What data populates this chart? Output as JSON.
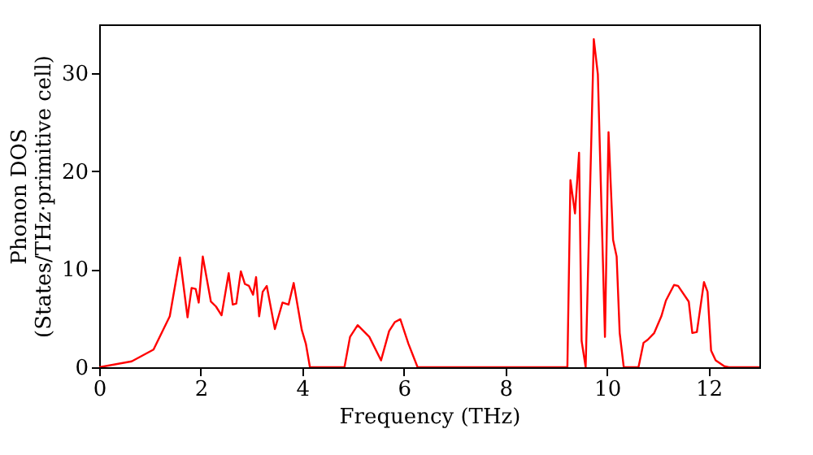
{
  "chart_data": {
    "type": "line",
    "xlabel": "Frequency (THz)",
    "ylabel": "Phonon DOS\n(States/THz·primitive cell)",
    "series": [
      {
        "color": "#ff0000",
        "x": [
          0,
          0.64,
          1.07,
          1.39,
          1.59,
          1.74,
          1.82,
          1.9,
          1.96,
          2.04,
          2.2,
          2.3,
          2.41,
          2.55,
          2.63,
          2.7,
          2.79,
          2.87,
          2.95,
          3.03,
          3.09,
          3.15,
          3.22,
          3.3,
          3.46,
          3.61,
          3.73,
          3.83,
          3.99,
          4.07,
          4.15,
          4.83,
          4.94,
          5.09,
          5.32,
          5.55,
          5.71,
          5.82,
          5.93,
          6.09,
          6.27,
          9.22,
          9.28,
          9.37,
          9.45,
          9.5,
          9.58,
          9.74,
          9.82,
          9.96,
          10.03,
          10.12,
          10.19,
          10.25,
          10.33,
          10.62,
          10.72,
          10.8,
          10.93,
          11.07,
          11.16,
          11.23,
          11.32,
          11.4,
          11.61,
          11.68,
          11.77,
          11.91,
          11.98,
          12.05,
          12.14,
          12.31,
          12.4,
          13
        ],
        "values": [
          0,
          0.6,
          1.8,
          5.2,
          11.2,
          5.1,
          8.1,
          8.0,
          6.6,
          11.3,
          6.7,
          6.2,
          5.3,
          9.6,
          6.4,
          6.5,
          9.8,
          8.5,
          8.3,
          7.4,
          9.2,
          5.2,
          7.7,
          8.3,
          3.9,
          6.6,
          6.4,
          8.6,
          3.8,
          2.4,
          0,
          0,
          3.1,
          4.3,
          3.1,
          0.7,
          3.7,
          4.6,
          4.9,
          2.4,
          0,
          0,
          19.1,
          15.7,
          21.9,
          2.7,
          0,
          33.5,
          29.9,
          3.1,
          24.0,
          13.0,
          11.3,
          3.5,
          0,
          0,
          2.5,
          2.8,
          3.5,
          5.2,
          6.8,
          7.5,
          8.4,
          8.3,
          6.7,
          3.5,
          3.6,
          8.7,
          7.7,
          1.7,
          0.7,
          0.1,
          0,
          0
        ]
      }
    ],
    "xlim": [
      0,
      13
    ],
    "ylim": [
      0,
      35
    ],
    "xticks": [
      0,
      2,
      4,
      6,
      8,
      10,
      12
    ],
    "yticks": [
      0,
      10,
      20,
      30
    ],
    "grid": false,
    "legend": false
  }
}
